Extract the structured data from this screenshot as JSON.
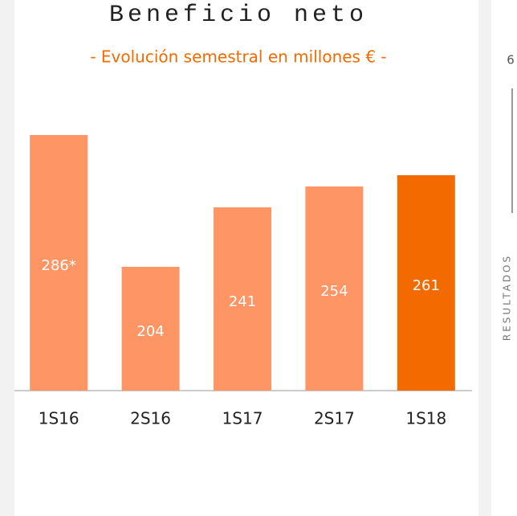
{
  "chart_data": {
    "type": "bar",
    "title": "Beneficio neto",
    "subtitle": "- Evolución semestral en millones € -",
    "categories": [
      "1S16",
      "2S16",
      "1S17",
      "2S17",
      "1S18"
    ],
    "values": [
      286,
      204,
      241,
      254,
      261
    ],
    "value_labels": [
      "286*",
      "204",
      "241",
      "254",
      "261"
    ],
    "colors": [
      "#fd9565",
      "#fd9565",
      "#fd9565",
      "#fd9565",
      "#f26a00"
    ],
    "ylim": [
      127,
      300
    ]
  },
  "side": {
    "page_number": "6",
    "section": "RESULTADOS"
  }
}
